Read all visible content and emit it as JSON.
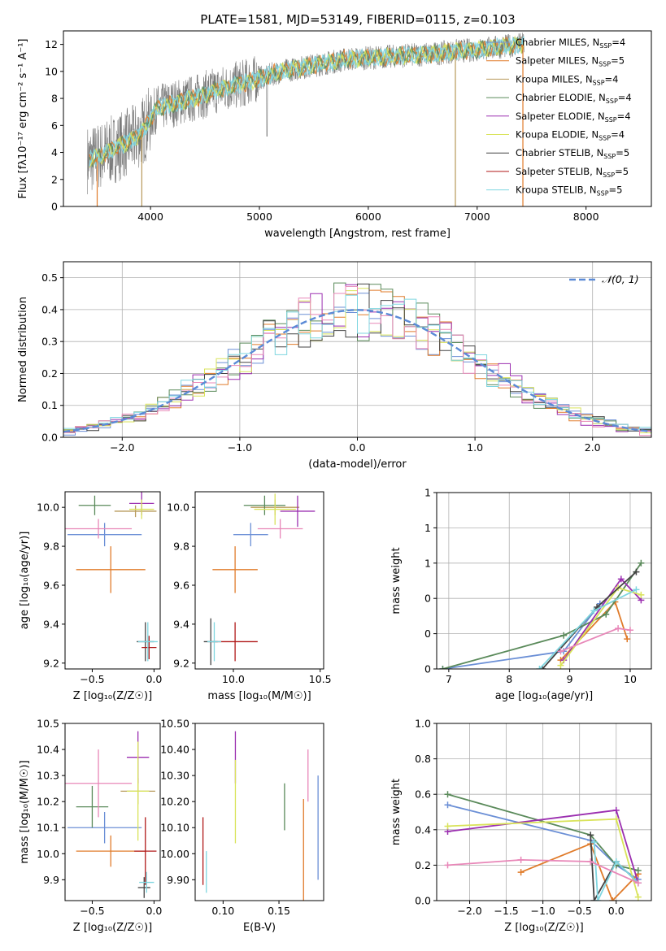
{
  "figure": {
    "title": "PLATE=1581, MJD=53149, FIBERID=0115, z=0.103"
  },
  "colors": {
    "Chabrier MILES": "#6b8fd6",
    "Salpeter MILES": "#e07b2a",
    "Kroupa MILES": "#b89a5a",
    "Chabrier ELODIE": "#5a8a5a",
    "Salpeter ELODIE": "#9b2fb0",
    "Kroupa ELODIE": "#d9e35a",
    "Chabrier STELIB": "#444444",
    "Salpeter STELIB": "#b01818",
    "Kroupa STELIB": "#7fd6e0",
    "Pink": "#e887b8",
    "Data": "#7a7a7a",
    "Normal": "#5b8ad6"
  },
  "chart_data": [
    {
      "type": "line",
      "panel": "spectrum",
      "xlabel": "wavelength [Angstrom, rest frame]",
      "ylabel": "Flux [fλ10⁻¹⁷ erg cm⁻² s⁻¹ A⁻¹]",
      "xlim": [
        3200,
        8600
      ],
      "ylim": [
        0,
        13
      ],
      "xticks": [
        4000,
        5000,
        6000,
        7000,
        8000
      ],
      "yticks": [
        0,
        2,
        4,
        6,
        8,
        10,
        12
      ],
      "legend_position": "right",
      "legend": [
        {
          "name": "Chabrier MILES, N",
          "sub": "SSP",
          "suffix": "=4"
        },
        {
          "name": "Salpeter MILES, N",
          "sub": "SSP",
          "suffix": "=5"
        },
        {
          "name": "Kroupa MILES, N",
          "sub": "SSP",
          "suffix": "=4"
        },
        {
          "name": "Chabrier ELODIE, N",
          "sub": "SSP",
          "suffix": "=4"
        },
        {
          "name": "Salpeter ELODIE, N",
          "sub": "SSP",
          "suffix": "=4"
        },
        {
          "name": "Kroupa ELODIE, N",
          "sub": "SSP",
          "suffix": "=4"
        },
        {
          "name": "Chabrier STELIB, N",
          "sub": "SSP",
          "suffix": "=5"
        },
        {
          "name": "Salpeter STELIB, N",
          "sub": "SSP",
          "suffix": "=5"
        },
        {
          "name": "Kroupa STELIB, N",
          "sub": "SSP",
          "suffix": "=5"
        }
      ],
      "continuum": [
        [
          3450,
          3.5
        ],
        [
          3550,
          3.8
        ],
        [
          3650,
          4.2
        ],
        [
          3750,
          4.6
        ],
        [
          3850,
          5.0
        ],
        [
          3950,
          5.8
        ],
        [
          4050,
          7.2
        ],
        [
          4200,
          7.6
        ],
        [
          4400,
          8.0
        ],
        [
          4600,
          8.6
        ],
        [
          4800,
          9.0
        ],
        [
          5000,
          9.5
        ],
        [
          5200,
          10.0
        ],
        [
          5400,
          10.3
        ],
        [
          5600,
          10.6
        ],
        [
          5800,
          10.9
        ],
        [
          6000,
          11.0
        ],
        [
          6200,
          11.1
        ],
        [
          6400,
          11.2
        ],
        [
          6600,
          11.3
        ],
        [
          6800,
          11.5
        ],
        [
          7000,
          11.6
        ],
        [
          7200,
          11.8
        ],
        [
          7400,
          12.0
        ]
      ],
      "model_dropouts": [
        3510,
        3920,
        6800,
        7420
      ]
    },
    {
      "type": "line",
      "panel": "residual_histogram",
      "xlabel": "(data-model)/error",
      "ylabel": "Normed distribution",
      "xlim": [
        -2.5,
        2.5
      ],
      "ylim": [
        0,
        0.55
      ],
      "xticks": [
        -2,
        -1,
        0,
        1,
        2
      ],
      "yticks": [
        0.0,
        0.1,
        0.2,
        0.3,
        0.4,
        0.5
      ],
      "grid": true,
      "legend_position": "top-right",
      "legend": [
        "𝒩(0, 1)"
      ],
      "bin_width": 0.1
    },
    {
      "type": "scatter",
      "panel": "age_vs_Z",
      "xlabel": "Z [log₁₀(Z/Z☉)]",
      "ylabel": "age  [log₁₀(age/yr)]",
      "xlim": [
        -0.72,
        0.05
      ],
      "ylim": [
        9.17,
        10.08
      ],
      "xticks": [
        -0.5,
        0.0
      ],
      "yticks": [
        9.2,
        9.4,
        9.6,
        9.8,
        10.0
      ],
      "points": [
        {
          "series": "Chabrier MILES",
          "x": -0.4,
          "y": 9.86,
          "xerr": 0.3,
          "yerr": 0.06
        },
        {
          "series": "Salpeter MILES",
          "x": -0.35,
          "y": 9.68,
          "xerr": 0.28,
          "yerr": 0.12
        },
        {
          "series": "Kroupa MILES",
          "x": -0.15,
          "y": 9.98,
          "xerr": 0.17,
          "yerr": 0.03
        },
        {
          "series": "Chabrier ELODIE",
          "x": -0.48,
          "y": 10.01,
          "xerr": 0.13,
          "yerr": 0.05
        },
        {
          "series": "Salpeter ELODIE",
          "x": -0.1,
          "y": 10.02,
          "xerr": 0.1,
          "yerr": 0.06
        },
        {
          "series": "Kroupa ELODIE",
          "x": -0.1,
          "y": 9.99,
          "xerr": 0.1,
          "yerr": 0.05
        },
        {
          "series": "Chabrier STELIB",
          "x": -0.07,
          "y": 9.31,
          "xerr": 0.07,
          "yerr": 0.1
        },
        {
          "series": "Salpeter STELIB",
          "x": -0.04,
          "y": 9.28,
          "xerr": 0.06,
          "yerr": 0.06
        },
        {
          "series": "Kroupa STELIB",
          "x": -0.05,
          "y": 9.31,
          "xerr": 0.08,
          "yerr": 0.1
        },
        {
          "series": "Pink",
          "x": -0.45,
          "y": 9.89,
          "xerr": 0.27,
          "yerr": 0.05
        }
      ]
    },
    {
      "type": "scatter",
      "panel": "age_vs_mass",
      "xlabel": "mass [log₁₀(M/M☉)]",
      "ylabel": "",
      "xlim": [
        9.78,
        10.52
      ],
      "ylim": [
        9.17,
        10.08
      ],
      "xticks": [
        10.0,
        10.5
      ],
      "yticks": [
        9.2,
        9.4,
        9.6,
        9.8,
        10.0
      ],
      "points": [
        {
          "series": "Chabrier MILES",
          "x": 10.1,
          "y": 9.86,
          "xerr": 0.1,
          "yerr": 0.06
        },
        {
          "series": "Salpeter MILES",
          "x": 10.01,
          "y": 9.68,
          "xerr": 0.13,
          "yerr": 0.12
        },
        {
          "series": "Kroupa MILES",
          "x": 10.24,
          "y": 10.0,
          "xerr": 0.14,
          "yerr": 0.04
        },
        {
          "series": "Chabrier ELODIE",
          "x": 10.18,
          "y": 10.01,
          "xerr": 0.12,
          "yerr": 0.05
        },
        {
          "series": "Salpeter ELODIE",
          "x": 10.37,
          "y": 9.98,
          "xerr": 0.1,
          "yerr": 0.08
        },
        {
          "series": "Kroupa ELODIE",
          "x": 10.24,
          "y": 9.99,
          "xerr": 0.12,
          "yerr": 0.08
        },
        {
          "series": "Chabrier STELIB",
          "x": 9.87,
          "y": 9.31,
          "xerr": 0.04,
          "yerr": 0.12
        },
        {
          "series": "Salpeter STELIB",
          "x": 10.01,
          "y": 9.31,
          "xerr": 0.13,
          "yerr": 0.1
        },
        {
          "series": "Kroupa STELIB",
          "x": 9.89,
          "y": 9.31,
          "xerr": 0.04,
          "yerr": 0.1
        },
        {
          "series": "Pink",
          "x": 10.27,
          "y": 9.89,
          "xerr": 0.13,
          "yerr": 0.05
        }
      ]
    },
    {
      "type": "line",
      "panel": "mass_weight_vs_age",
      "xlabel": "age  [log₁₀(age/yr)]",
      "ylabel": "mass weight",
      "xlim": [
        6.8,
        10.35
      ],
      "ylim": [
        0,
        1.0
      ],
      "xticks": [
        7,
        8,
        9,
        10
      ],
      "yticks": [
        0.0,
        0.2,
        0.4,
        0.6,
        0.8,
        1.0
      ],
      "grid": true,
      "series": [
        {
          "name": "Chabrier MILES",
          "x": [
            6.9,
            8.9,
            9.5
          ],
          "y": [
            0.0,
            0.1,
            0.37
          ]
        },
        {
          "name": "Salpeter MILES",
          "x": [
            8.85,
            9.75,
            9.95
          ],
          "y": [
            0.05,
            0.38,
            0.17
          ]
        },
        {
          "name": "Chabrier ELODIE",
          "x": [
            6.9,
            8.9,
            9.6,
            10.18
          ],
          "y": [
            0.0,
            0.19,
            0.31,
            0.6
          ]
        },
        {
          "name": "Salpeter ELODIE",
          "x": [
            8.9,
            9.85,
            10.18
          ],
          "y": [
            0.05,
            0.51,
            0.39
          ]
        },
        {
          "name": "Kroupa ELODIE",
          "x": [
            8.85,
            9.8,
            10.18
          ],
          "y": [
            0.02,
            0.46,
            0.42
          ]
        },
        {
          "name": "Chabrier STELIB",
          "x": [
            8.55,
            9.45,
            10.1
          ],
          "y": [
            0.0,
            0.35,
            0.55
          ]
        },
        {
          "name": "Kroupa STELIB",
          "x": [
            8.5,
            9.4,
            10.1
          ],
          "y": [
            0.0,
            0.33,
            0.45
          ]
        },
        {
          "name": "Pink",
          "x": [
            8.85,
            9.8,
            10.0
          ],
          "y": [
            0.1,
            0.23,
            0.22
          ]
        }
      ]
    },
    {
      "type": "scatter",
      "panel": "mass_vs_Z",
      "xlabel": "Z [log₁₀(Z/Z☉)]",
      "ylabel": "mass [log₁₀(M/M☉)]",
      "xlim": [
        -0.72,
        0.05
      ],
      "ylim": [
        9.82,
        10.5
      ],
      "xticks": [
        -0.5,
        0.0
      ],
      "yticks": [
        9.9,
        10.0,
        10.1,
        10.2,
        10.3,
        10.4,
        10.5
      ],
      "points": [
        {
          "series": "Chabrier MILES",
          "x": -0.4,
          "y": 10.1,
          "xerr": 0.3,
          "yerr": 0.06
        },
        {
          "series": "Salpeter MILES",
          "x": -0.35,
          "y": 10.01,
          "xerr": 0.28,
          "yerr": 0.06
        },
        {
          "series": "Kroupa MILES",
          "x": -0.13,
          "y": 10.24,
          "xerr": 0.14,
          "yerr": 0.05
        },
        {
          "series": "Chabrier ELODIE",
          "x": -0.5,
          "y": 10.18,
          "xerr": 0.13,
          "yerr": 0.08
        },
        {
          "series": "Salpeter ELODIE",
          "x": -0.13,
          "y": 10.37,
          "xerr": 0.09,
          "yerr": 0.1
        },
        {
          "series": "Kroupa ELODIE",
          "x": -0.13,
          "y": 10.24,
          "xerr": 0.09,
          "yerr": 0.19
        },
        {
          "series": "Chabrier STELIB",
          "x": -0.08,
          "y": 9.87,
          "xerr": 0.05,
          "yerr": 0.04
        },
        {
          "series": "Salpeter STELIB",
          "x": -0.07,
          "y": 10.01,
          "xerr": 0.09,
          "yerr": 0.13
        },
        {
          "series": "Kroupa STELIB",
          "x": -0.06,
          "y": 9.89,
          "xerr": 0.06,
          "yerr": 0.04
        },
        {
          "series": "Pink",
          "x": -0.45,
          "y": 10.27,
          "xerr": 0.27,
          "yerr": 0.13
        }
      ]
    },
    {
      "type": "scatter",
      "panel": "mass_vs_EBV",
      "xlabel": "E(B-V)",
      "ylabel": "",
      "xlim": [
        0.075,
        0.19
      ],
      "ylim": [
        9.82,
        10.5
      ],
      "xticks": [
        0.1,
        0.15
      ],
      "yticks": [
        9.9,
        10.0,
        10.1,
        10.2,
        10.3,
        10.4,
        10.5
      ],
      "points": [
        {
          "series": "Chabrier MILES",
          "x": 0.185,
          "y": 10.1,
          "yerr": 0.2
        },
        {
          "series": "Salpeter MILES",
          "x": 0.172,
          "y": 10.01,
          "yerr": 0.2
        },
        {
          "series": "Chabrier ELODIE",
          "x": 0.155,
          "y": 10.18,
          "yerr": 0.09
        },
        {
          "series": "Salpeter ELODIE",
          "x": 0.111,
          "y": 10.37,
          "yerr": 0.1
        },
        {
          "series": "Kroupa ELODIE",
          "x": 0.111,
          "y": 10.2,
          "yerr": 0.16
        },
        {
          "series": "Salpeter STELIB",
          "x": 0.082,
          "y": 10.01,
          "yerr": 0.13
        },
        {
          "series": "Kroupa STELIB",
          "x": 0.085,
          "y": 9.93,
          "yerr": 0.08
        },
        {
          "series": "Pink",
          "x": 0.176,
          "y": 10.3,
          "yerr": 0.1
        }
      ]
    },
    {
      "type": "line",
      "panel": "mass_weight_vs_Z",
      "xlabel": "Z [log₁₀(Z/Z☉)]",
      "ylabel": "mass weight",
      "xlim": [
        -2.45,
        0.48
      ],
      "ylim": [
        0,
        1.0
      ],
      "xticks": [
        -2.0,
        -1.5,
        -1.0,
        -0.5,
        0.0
      ],
      "yticks": [
        0.0,
        0.2,
        0.4,
        0.6,
        0.8,
        1.0
      ],
      "grid": true,
      "series": [
        {
          "name": "Chabrier MILES",
          "x": [
            -2.3,
            -0.35,
            0.0,
            0.3
          ],
          "y": [
            0.54,
            0.34,
            0.2,
            0.12
          ]
        },
        {
          "name": "Salpeter MILES",
          "x": [
            -1.3,
            -0.35,
            -0.05,
            0.3
          ],
          "y": [
            0.16,
            0.32,
            0.0,
            0.15
          ]
        },
        {
          "name": "Chabrier ELODIE",
          "x": [
            -2.3,
            -0.35,
            0.0,
            0.3
          ],
          "y": [
            0.6,
            0.37,
            0.2,
            0.17
          ]
        },
        {
          "name": "Salpeter ELODIE",
          "x": [
            -2.3,
            0.0,
            0.3
          ],
          "y": [
            0.39,
            0.51,
            0.1
          ]
        },
        {
          "name": "Kroupa ELODIE",
          "x": [
            -2.3,
            0.0,
            0.3
          ],
          "y": [
            0.42,
            0.46,
            0.02
          ]
        },
        {
          "name": "Chabrier STELIB",
          "x": [
            -0.35,
            -0.3,
            0.0,
            0.3
          ],
          "y": [
            0.37,
            0.0,
            0.22,
            0.1
          ]
        },
        {
          "name": "Kroupa STELIB",
          "x": [
            -0.3,
            -0.25,
            0.0,
            0.3
          ],
          "y": [
            0.33,
            0.0,
            0.22,
            0.1
          ]
        },
        {
          "name": "Pink",
          "x": [
            -2.3,
            -1.3,
            -0.35,
            0.3
          ],
          "y": [
            0.2,
            0.23,
            0.22,
            0.1
          ]
        }
      ]
    }
  ]
}
